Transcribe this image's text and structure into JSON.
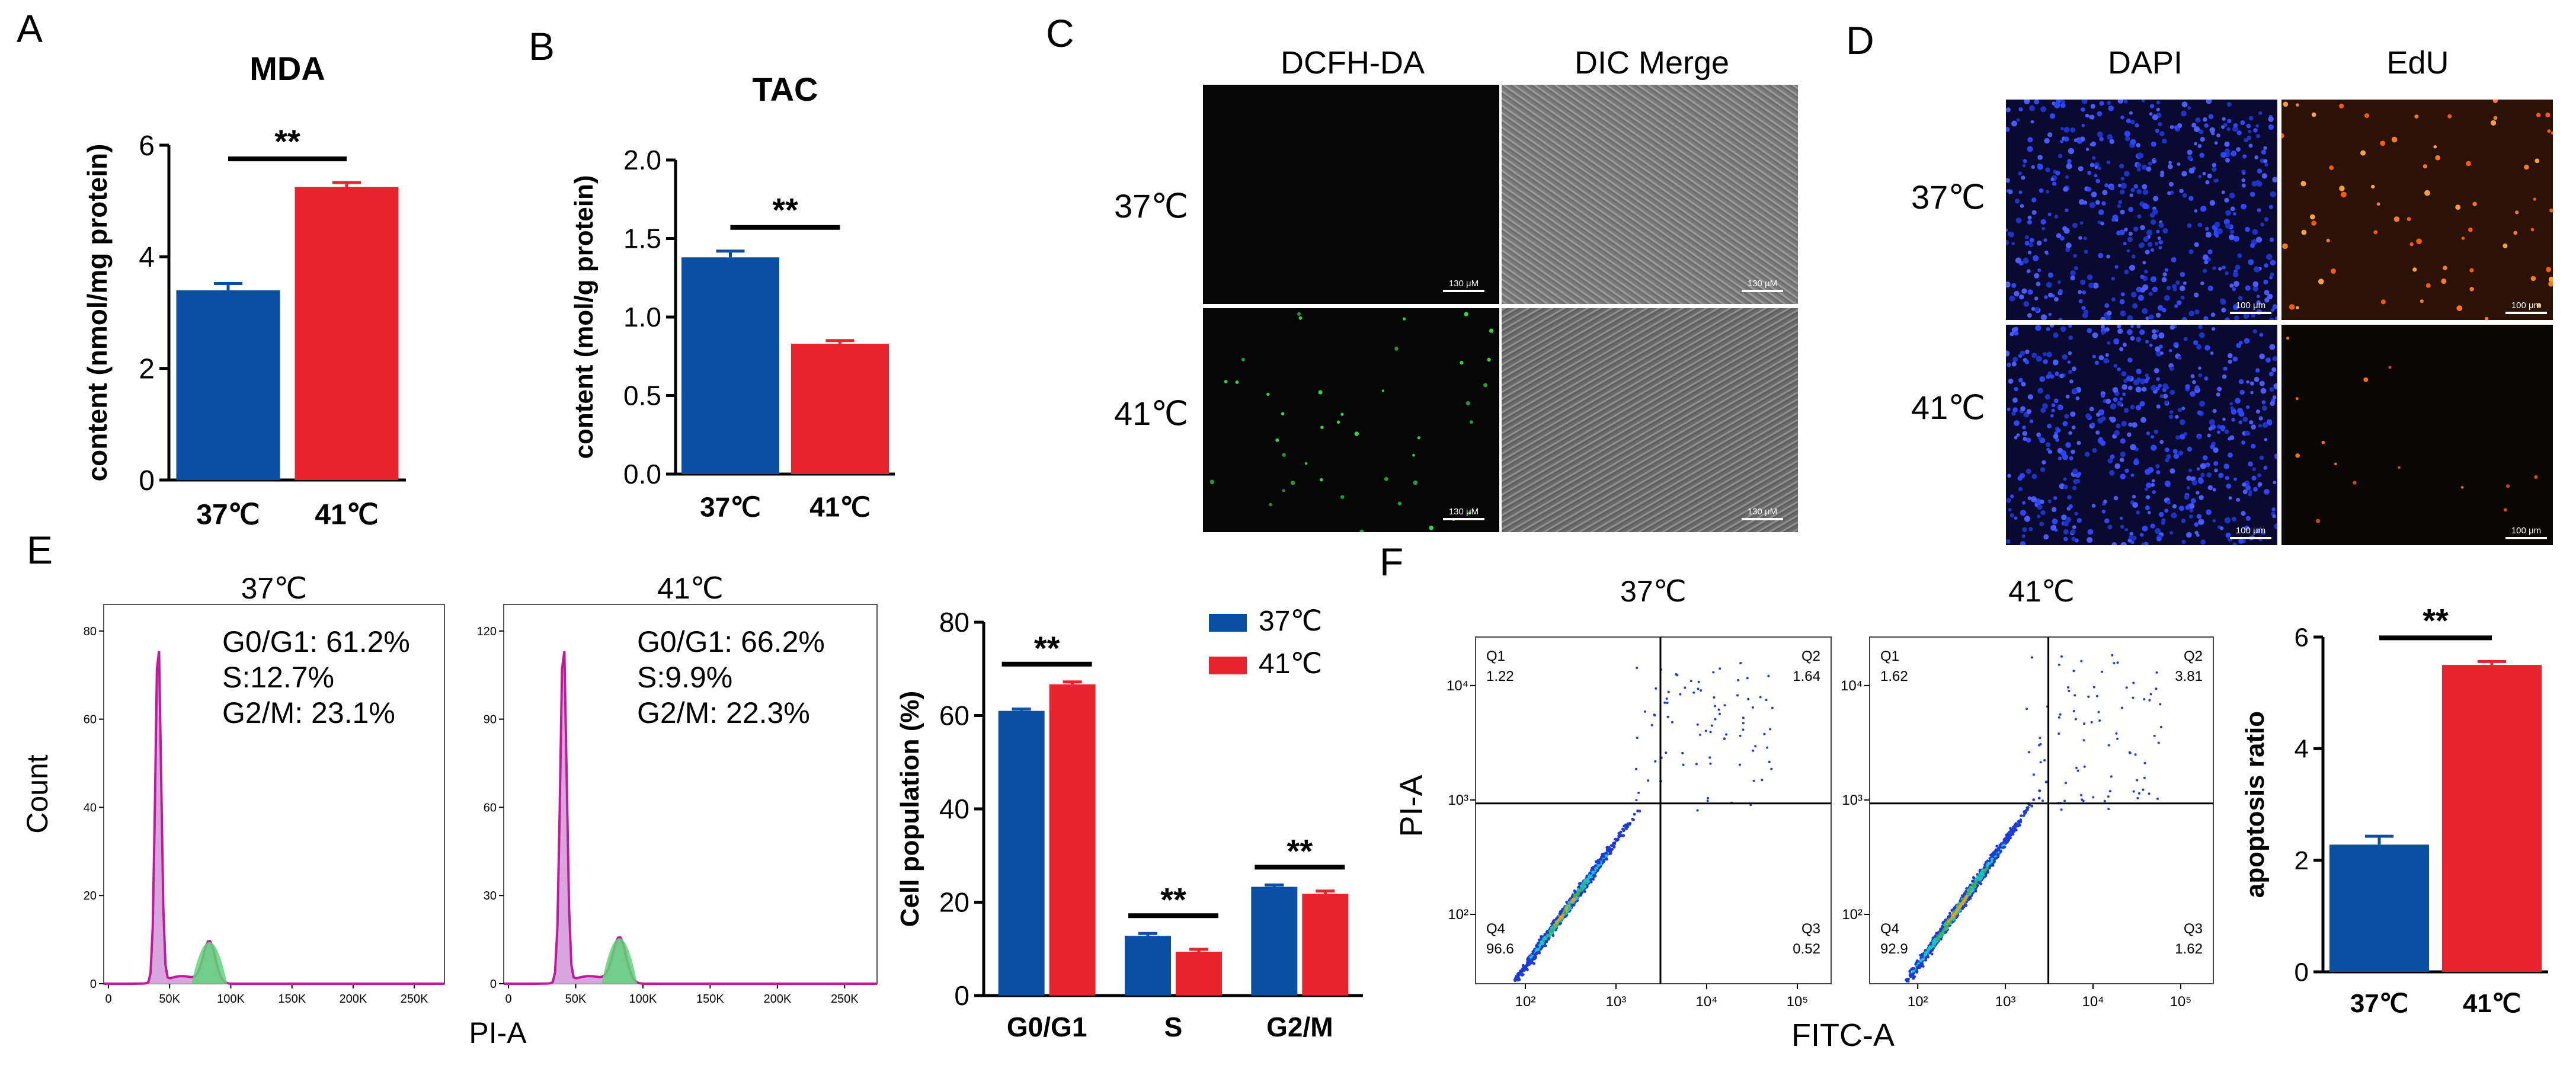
{
  "colors": {
    "blue": "#0a4fa2",
    "red": "#e8232c"
  },
  "panel_labels": {
    "A": "A",
    "B": "B",
    "C": "C",
    "D": "D",
    "E": "E",
    "F": "F"
  },
  "sig": "**",
  "panel_c": {
    "col_headers": [
      "DCFH-DA",
      "DIC Merge"
    ],
    "row_headers": [
      "37℃",
      "41℃"
    ],
    "scale_label": "130 μM"
  },
  "panel_d": {
    "col_headers": [
      "DAPI",
      "EdU"
    ],
    "row_headers": [
      "37℃",
      "41℃"
    ],
    "scale_label": "100 μm"
  },
  "panel_e_hist": {
    "xlabel": "PI-A",
    "ylabel": "Count",
    "x_ticks": [
      "0",
      "50K",
      "100K",
      "150K",
      "200K",
      "250K"
    ],
    "plots": [
      {
        "title": "37℃",
        "y_ticks": [
          "0",
          "20",
          "40",
          "60",
          "80"
        ],
        "stats": [
          "G0/G1: 61.2%",
          "S:12.7%",
          "G2/M: 23.1%"
        ]
      },
      {
        "title": "41℃",
        "y_ticks": [
          "0",
          "30",
          "60",
          "90",
          "120"
        ],
        "stats": [
          "G0/G1: 66.2%",
          "S:9.9%",
          "G2/M: 22.3%"
        ]
      }
    ]
  },
  "panel_f_flow": {
    "xlabel": "FITC-A",
    "ylabel": "PI-A",
    "x_ticks": [
      "10²",
      "10³",
      "10⁴",
      "10⁵"
    ],
    "y_ticks": [
      "10²",
      "10³",
      "10⁴"
    ],
    "plots": [
      {
        "title": "37℃",
        "quadrants": [
          {
            "name": "Q1",
            "value": "1.22"
          },
          {
            "name": "Q2",
            "value": "1.64"
          },
          {
            "name": "Q3",
            "value": "0.52"
          },
          {
            "name": "Q4",
            "value": "96.6"
          }
        ]
      },
      {
        "title": "41℃",
        "quadrants": [
          {
            "name": "Q1",
            "value": "1.62"
          },
          {
            "name": "Q2",
            "value": "3.81"
          },
          {
            "name": "Q3",
            "value": "1.62"
          },
          {
            "name": "Q4",
            "value": "92.9"
          }
        ]
      }
    ]
  },
  "chart_data": [
    {
      "id": "A",
      "type": "bar",
      "title": "MDA",
      "categories": [
        "37℃",
        "41℃"
      ],
      "values": [
        3.4,
        5.25
      ],
      "errors": [
        0.12,
        0.08
      ],
      "ylabel": "content (nmol/mg protein)",
      "ylim": [
        0,
        6
      ],
      "y_ticks": [
        "0",
        "2",
        "4",
        "6"
      ],
      "significance": "**"
    },
    {
      "id": "B",
      "type": "bar",
      "title": "TAC",
      "categories": [
        "37℃",
        "41℃"
      ],
      "values": [
        1.38,
        0.83
      ],
      "errors": [
        0.04,
        0.02
      ],
      "ylabel": "content (mol/g protein)",
      "ylim": [
        0,
        2.0
      ],
      "y_ticks": [
        "0.0",
        "0.5",
        "1.0",
        "1.5",
        "2.0"
      ],
      "significance": "**"
    },
    {
      "id": "E",
      "type": "bar",
      "title": "",
      "categories": [
        "G0/G1",
        "S",
        "G2/M"
      ],
      "series": [
        {
          "name": "37℃",
          "values": [
            61.0,
            12.8,
            23.3
          ],
          "errors": [
            0.4,
            0.5,
            0.4
          ]
        },
        {
          "name": "41℃",
          "values": [
            66.7,
            9.4,
            21.8
          ],
          "errors": [
            0.5,
            0.5,
            0.6
          ]
        }
      ],
      "ylabel": "Cell population (%)",
      "ylim": [
        0,
        80
      ],
      "y_ticks": [
        "0",
        "20",
        "40",
        "60",
        "80"
      ],
      "legend": "top-right",
      "significance": "**"
    },
    {
      "id": "F",
      "type": "bar",
      "title": "",
      "categories": [
        "37℃",
        "41℃"
      ],
      "values": [
        2.28,
        5.5
      ],
      "errors": [
        0.15,
        0.06
      ],
      "ylabel": "apoptosis ratio",
      "ylim": [
        0,
        6
      ],
      "y_ticks": [
        "0",
        "2",
        "4",
        "6"
      ],
      "significance": "**"
    }
  ]
}
